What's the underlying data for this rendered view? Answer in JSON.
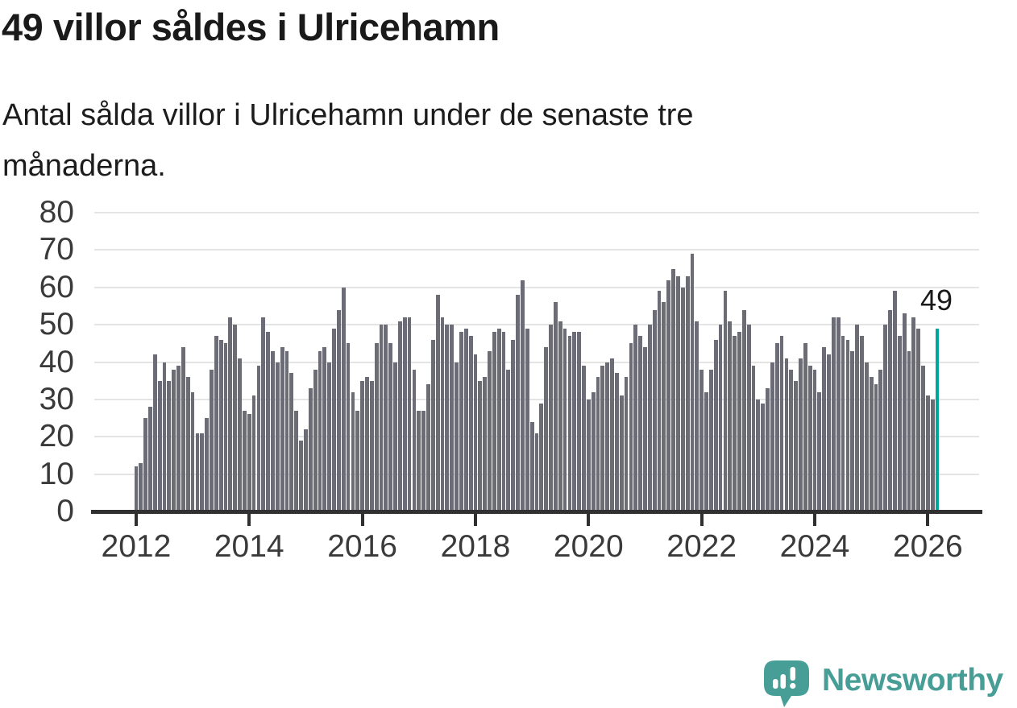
{
  "title": "49 villor såldes i Ulricehamn",
  "subtitle": {
    "lines": [
      "Antal sålda villor i Ulricehamn under de senaste tre",
      "månaderna."
    ]
  },
  "annotation": {
    "label": "49"
  },
  "branding": {
    "name": "Newsworthy",
    "icon": "speech-bubble-bar-chart-icon"
  },
  "colors": {
    "bar": "#6c6c77",
    "accent": "#00a59b",
    "logo": "#469e96",
    "axis": "#303030",
    "grid": "#e4e4e4",
    "title_text": "#1a1a1a",
    "axis_text": "#3a3a3a"
  },
  "chart_data": {
    "type": "bar",
    "title": "49 villor såldes i Ulricehamn",
    "x_start_label": "2012",
    "x_tick_labels": [
      "2012",
      "2014",
      "2016",
      "2018",
      "2020",
      "2022",
      "2024",
      "2026"
    ],
    "months_per_tick": 24,
    "y_ticks": [
      0,
      10,
      20,
      30,
      40,
      50,
      60,
      70,
      80
    ],
    "ylim": [
      0,
      80
    ],
    "grid": true,
    "legend": "none",
    "highlight_last_bar": true,
    "last_bar_value_label": "49",
    "values": [
      12,
      13,
      25,
      28,
      42,
      35,
      40,
      35,
      38,
      39,
      44,
      36,
      32,
      21,
      21,
      25,
      38,
      47,
      46,
      45,
      52,
      50,
      41,
      27,
      26,
      31,
      39,
      52,
      48,
      43,
      40,
      44,
      43,
      37,
      27,
      19,
      22,
      33,
      38,
      43,
      44,
      40,
      49,
      54,
      60,
      45,
      32,
      27,
      35,
      36,
      35,
      45,
      50,
      50,
      45,
      40,
      51,
      52,
      52,
      38,
      27,
      27,
      34,
      46,
      58,
      52,
      50,
      50,
      40,
      48,
      49,
      47,
      42,
      35,
      36,
      43,
      48,
      49,
      48,
      38,
      46,
      58,
      62,
      49,
      24,
      21,
      29,
      44,
      50,
      56,
      51,
      49,
      47,
      48,
      48,
      39,
      30,
      32,
      36,
      39,
      40,
      41,
      37,
      31,
      36,
      45,
      50,
      47,
      44,
      50,
      54,
      59,
      56,
      62,
      65,
      63,
      60,
      63,
      69,
      51,
      38,
      32,
      38,
      46,
      50,
      59,
      51,
      47,
      48,
      54,
      50,
      39,
      30,
      29,
      33,
      40,
      45,
      47,
      41,
      38,
      35,
      41,
      45,
      39,
      38,
      32,
      44,
      42,
      52,
      52,
      47,
      46,
      43,
      50,
      47,
      40,
      36,
      34,
      38,
      50,
      54,
      59,
      47,
      53,
      43,
      52,
      49,
      39,
      31,
      30,
      49
    ]
  }
}
